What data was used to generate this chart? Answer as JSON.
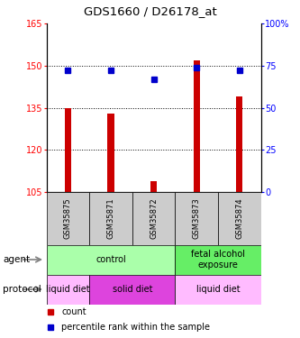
{
  "title": "GDS1660 / D26178_at",
  "samples": [
    "GSM35875",
    "GSM35871",
    "GSM35872",
    "GSM35873",
    "GSM35874"
  ],
  "bar_values": [
    135,
    133,
    109,
    152,
    139
  ],
  "bar_bottom": 105,
  "percentile_values": [
    72,
    72,
    67,
    74,
    72
  ],
  "ylim_left": [
    105,
    165
  ],
  "ylim_right": [
    0,
    100
  ],
  "yticks_left": [
    105,
    120,
    135,
    150,
    165
  ],
  "ytick_labels_left": [
    "105",
    "120",
    "135",
    "150",
    "165"
  ],
  "yticks_right": [
    0,
    25,
    50,
    75,
    100
  ],
  "ytick_labels_right": [
    "0",
    "25",
    "50",
    "75",
    "100%"
  ],
  "grid_lines": [
    120,
    135,
    150
  ],
  "bar_color": "#cc0000",
  "dot_color": "#0000cc",
  "xlabel_agent": "agent",
  "xlabel_protocol": "protocol",
  "sample_box_color": "#cccccc",
  "agent_groups": [
    {
      "cols": [
        0,
        1,
        2
      ],
      "text": "control",
      "color": "#aaffaa"
    },
    {
      "cols": [
        3,
        4
      ],
      "text": "fetal alcohol\nexposure",
      "color": "#66ee66"
    }
  ],
  "protocol_groups": [
    {
      "cols": [
        0
      ],
      "text": "liquid diet",
      "color": "#ffbbff"
    },
    {
      "cols": [
        1,
        2
      ],
      "text": "solid diet",
      "color": "#dd44dd"
    },
    {
      "cols": [
        3,
        4
      ],
      "text": "liquid diet",
      "color": "#ffbbff"
    }
  ]
}
